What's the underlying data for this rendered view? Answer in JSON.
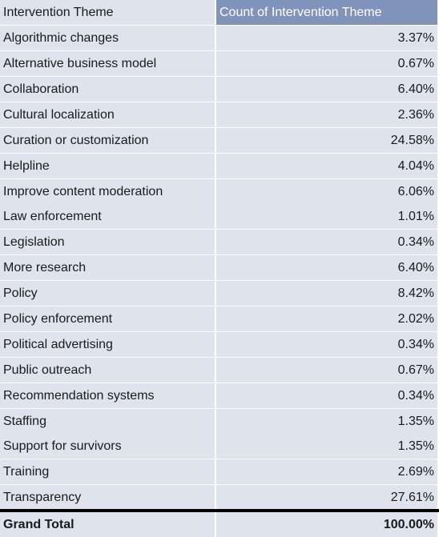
{
  "header": {
    "label": "Intervention Theme",
    "value": "Count of Intervention Theme"
  },
  "rows": [
    {
      "label": "Algorithmic changes",
      "value": "3.37%"
    },
    {
      "label": "Alternative business model",
      "value": "0.67%"
    },
    {
      "label": "Collaboration",
      "value": "6.40%"
    },
    {
      "label": "Cultural localization",
      "value": "2.36%"
    },
    {
      "label": "Curation or customization",
      "value": "24.58%"
    },
    {
      "label": "Helpline",
      "value": "4.04%"
    },
    {
      "label": "Improve content moderation",
      "value": "6.06%"
    },
    {
      "label": "Law enforcement",
      "value": "1.01%"
    },
    {
      "label": "Legislation",
      "value": "0.34%"
    },
    {
      "label": "More research",
      "value": "6.40%"
    },
    {
      "label": "Policy",
      "value": "8.42%"
    },
    {
      "label": "Policy enforcement",
      "value": "2.02%"
    },
    {
      "label": "Political advertising",
      "value": "0.34%"
    },
    {
      "label": "Public outreach",
      "value": "0.67%"
    },
    {
      "label": "Recommendation systems",
      "value": "0.34%"
    },
    {
      "label": "Staffing",
      "value": "1.35%"
    },
    {
      "label": "Support for survivors",
      "value": "1.35%"
    },
    {
      "label": "Training",
      "value": "2.69%"
    },
    {
      "label": "Transparency",
      "value": "27.61%"
    }
  ],
  "total": {
    "label": "Grand Total",
    "value": "100.00%"
  },
  "colors": {
    "cell_background": "#dee3ee",
    "header_value_background": "#8093bb",
    "total_rule": "#000000"
  }
}
